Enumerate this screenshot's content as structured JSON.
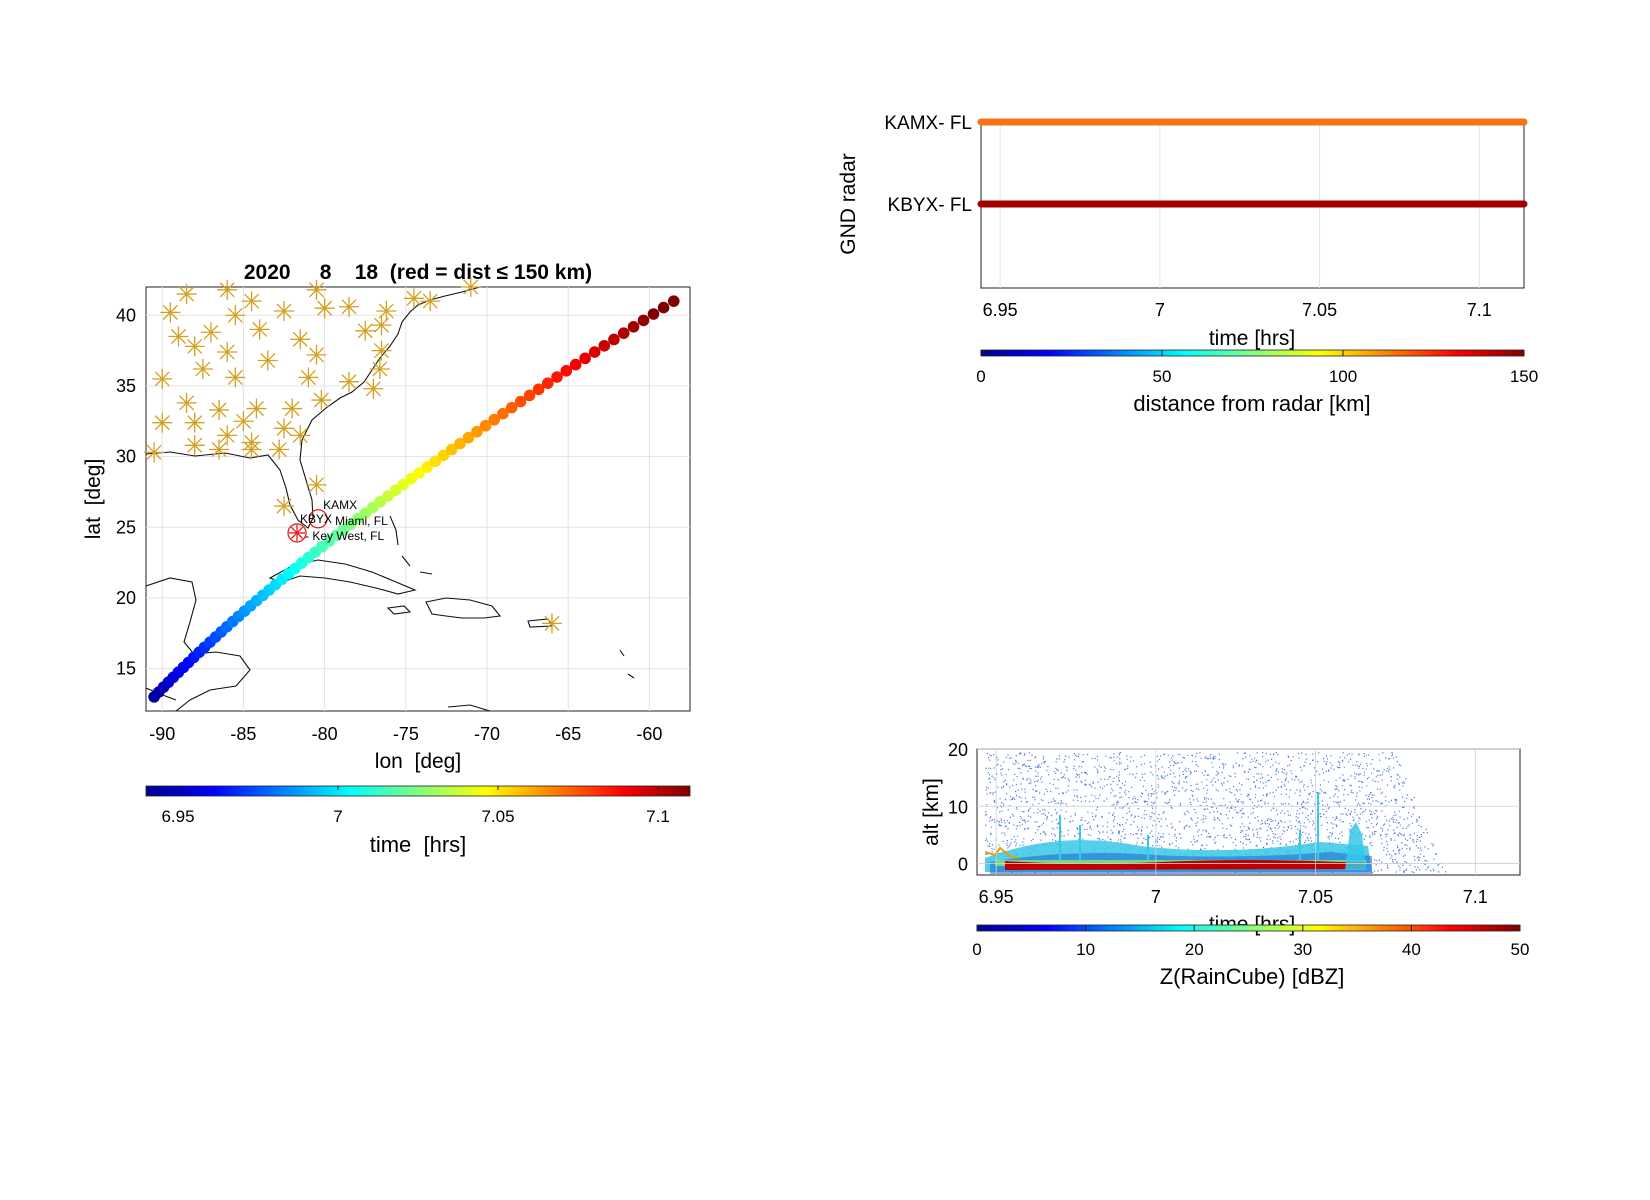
{
  "chart_data": [
    {
      "type": "scatter",
      "panel": "map",
      "title": "2020     8    18  (red = dist ≤ 150 km)",
      "xlabel": "lon  [deg]",
      "ylabel": "lat  [deg]",
      "xlim": [
        -91,
        -57.5
      ],
      "ylim": [
        12,
        42
      ],
      "xticks": [
        -90,
        -85,
        -80,
        -75,
        -70,
        -65,
        -60
      ],
      "yticks": [
        15,
        20,
        25,
        30,
        35,
        40
      ],
      "grid": true,
      "track": {
        "start": {
          "lon": -90.5,
          "lat": 13.0,
          "time": 6.945
        },
        "end": {
          "lon": -58.5,
          "lat": 41.0,
          "time": 7.114
        },
        "mid": {
          "lon": -77.5,
          "lat": 26.0
        }
      },
      "radars": [
        {
          "id": "KAMX",
          "name": "Miami, FL",
          "lon": -80.4,
          "lat": 25.6
        },
        {
          "id": "KBYX",
          "name": "Key West, FL",
          "lon": -81.7,
          "lat": 24.6
        }
      ],
      "station_markers": [
        [
          -88.5,
          41.5
        ],
        [
          -86.0,
          41.8
        ],
        [
          -80.5,
          41.8
        ],
        [
          -78.5,
          40.6
        ],
        [
          -84.5,
          41.0
        ],
        [
          -89.5,
          40.2
        ],
        [
          -85.5,
          40.0
        ],
        [
          -82.5,
          40.3
        ],
        [
          -80.0,
          40.5
        ],
        [
          -76.2,
          40.3
        ],
        [
          -71.0,
          42.0
        ],
        [
          -73.5,
          41.0
        ],
        [
          -74.5,
          41.2
        ],
        [
          -87.0,
          38.8
        ],
        [
          -89.0,
          38.5
        ],
        [
          -84.0,
          39.0
        ],
        [
          -81.5,
          38.3
        ],
        [
          -77.5,
          38.9
        ],
        [
          -76.5,
          39.3
        ],
        [
          -88.0,
          37.8
        ],
        [
          -86.0,
          37.4
        ],
        [
          -83.5,
          36.8
        ],
        [
          -80.5,
          37.2
        ],
        [
          -76.5,
          37.5
        ],
        [
          -90.0,
          35.5
        ],
        [
          -87.5,
          36.2
        ],
        [
          -85.5,
          35.6
        ],
        [
          -81.0,
          35.6
        ],
        [
          -78.5,
          35.3
        ],
        [
          -76.6,
          36.2
        ],
        [
          -77.0,
          34.8
        ],
        [
          -88.5,
          33.8
        ],
        [
          -86.5,
          33.3
        ],
        [
          -84.2,
          33.4
        ],
        [
          -82.0,
          33.4
        ],
        [
          -80.2,
          34.0
        ],
        [
          -90.0,
          32.4
        ],
        [
          -88.0,
          32.4
        ],
        [
          -86.0,
          31.5
        ],
        [
          -85.0,
          32.5
        ],
        [
          -84.5,
          31.0
        ],
        [
          -82.5,
          32.0
        ],
        [
          -81.5,
          31.5
        ],
        [
          -90.5,
          30.3
        ],
        [
          -88.0,
          30.8
        ],
        [
          -86.5,
          30.5
        ],
        [
          -84.5,
          30.5
        ],
        [
          -82.8,
          30.5
        ],
        [
          -80.5,
          28.0
        ],
        [
          -82.5,
          26.5
        ],
        [
          -66.0,
          18.2
        ]
      ],
      "colorbar": {
        "label": "time  [hrs]",
        "ticks": [
          6.95,
          7,
          7.05,
          7.1
        ],
        "range": [
          6.94,
          7.11
        ]
      }
    },
    {
      "type": "scatter",
      "panel": "radar-time",
      "ylabel": "GND radar",
      "xlabel": "time [hrs]",
      "xlim": [
        6.944,
        7.114
      ],
      "xticks": [
        6.95,
        7,
        7.05,
        7.1
      ],
      "grid": true,
      "series": [
        {
          "name": "KAMX-  FL",
          "distance_km": 105,
          "color": "#f97316"
        },
        {
          "name": "KBYX-  FL",
          "distance_km": 148,
          "color": "#a40000"
        }
      ],
      "colorbar": {
        "label": "distance from radar [km]",
        "ticks": [
          0,
          50,
          100,
          150
        ],
        "range": [
          0,
          150
        ]
      }
    },
    {
      "type": "heatmap",
      "panel": "raincube",
      "ylabel": "alt [km]",
      "xlabel": "time [hrs]",
      "xlim": [
        6.944,
        7.114
      ],
      "ylim": [
        -2,
        20
      ],
      "xticks": [
        6.95,
        7,
        7.05,
        7.1
      ],
      "yticks": [
        0,
        10,
        20
      ],
      "grid": true,
      "colorbar": {
        "label": "Z(RainCube) [dBZ]",
        "ticks": [
          0,
          10,
          20,
          30,
          40,
          50
        ],
        "range": [
          0,
          50
        ]
      }
    }
  ]
}
